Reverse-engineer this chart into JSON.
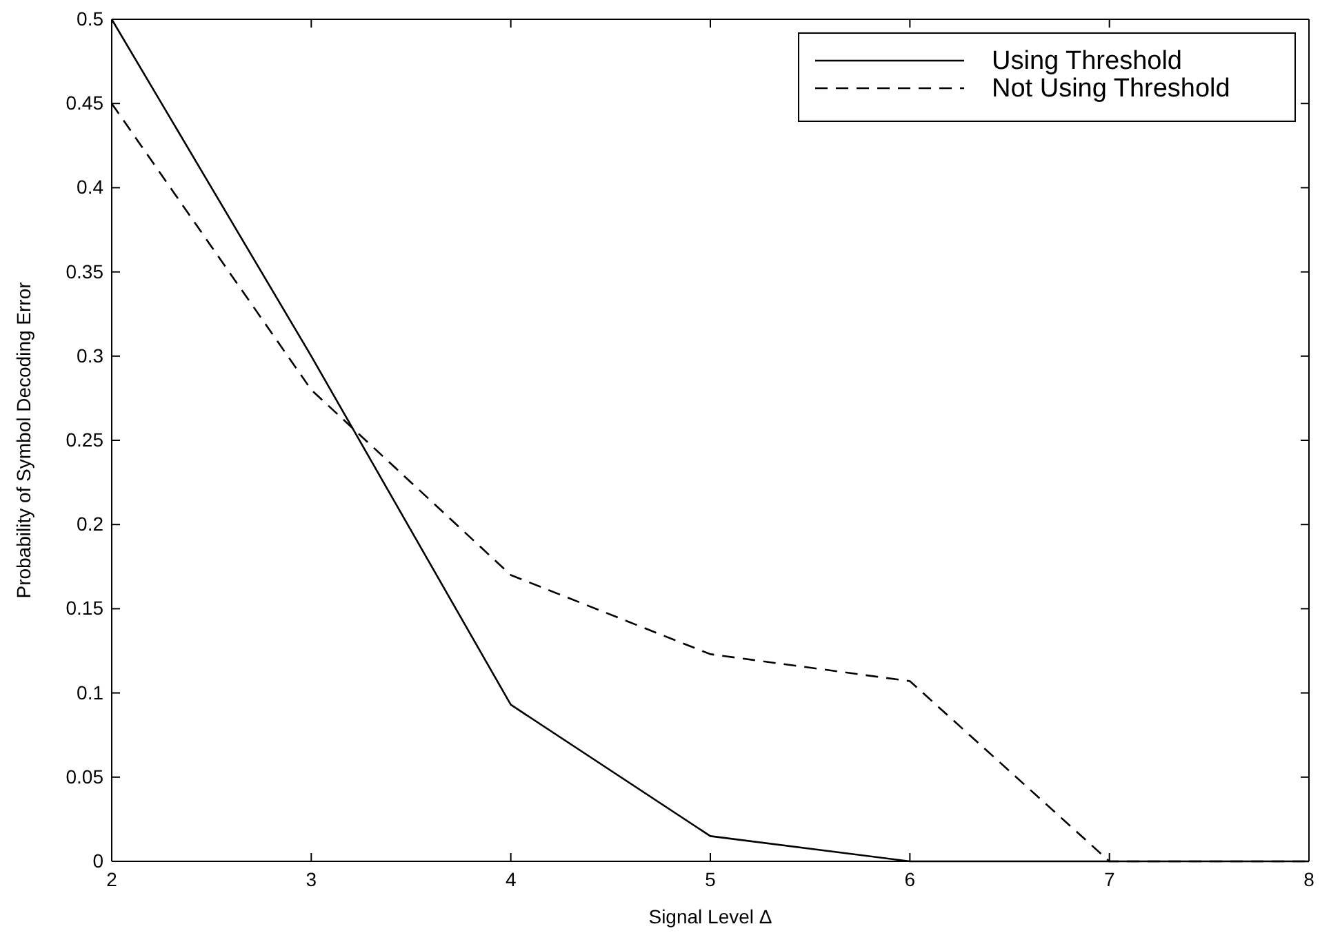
{
  "chart_data": {
    "type": "line",
    "xlabel": "Signal Level Δ",
    "ylabel": "Probability of Symbol Decoding Error",
    "x": [
      2,
      3,
      4,
      5,
      6,
      7,
      8
    ],
    "series": [
      {
        "name": "Using Threshold",
        "color": "#000000",
        "line_style": "solid",
        "values": [
          0.5,
          0.3,
          0.093,
          0.015,
          0,
          0,
          0
        ]
      },
      {
        "name": "Not Using Threshold",
        "color": "#000000",
        "line_style": "dashed",
        "values": [
          0.45,
          0.28,
          0.17,
          0.123,
          0.107,
          0,
          0
        ]
      }
    ],
    "xlim": [
      2,
      8
    ],
    "xticks": [
      2,
      3,
      4,
      5,
      6,
      7,
      8
    ],
    "ylim": [
      0,
      0.5
    ],
    "yticks": [
      0,
      0.05,
      0.1,
      0.15,
      0.2,
      0.25,
      0.3,
      0.35,
      0.4,
      0.45,
      0.5
    ],
    "grid": false,
    "legend": "top right",
    "marker": "none"
  }
}
